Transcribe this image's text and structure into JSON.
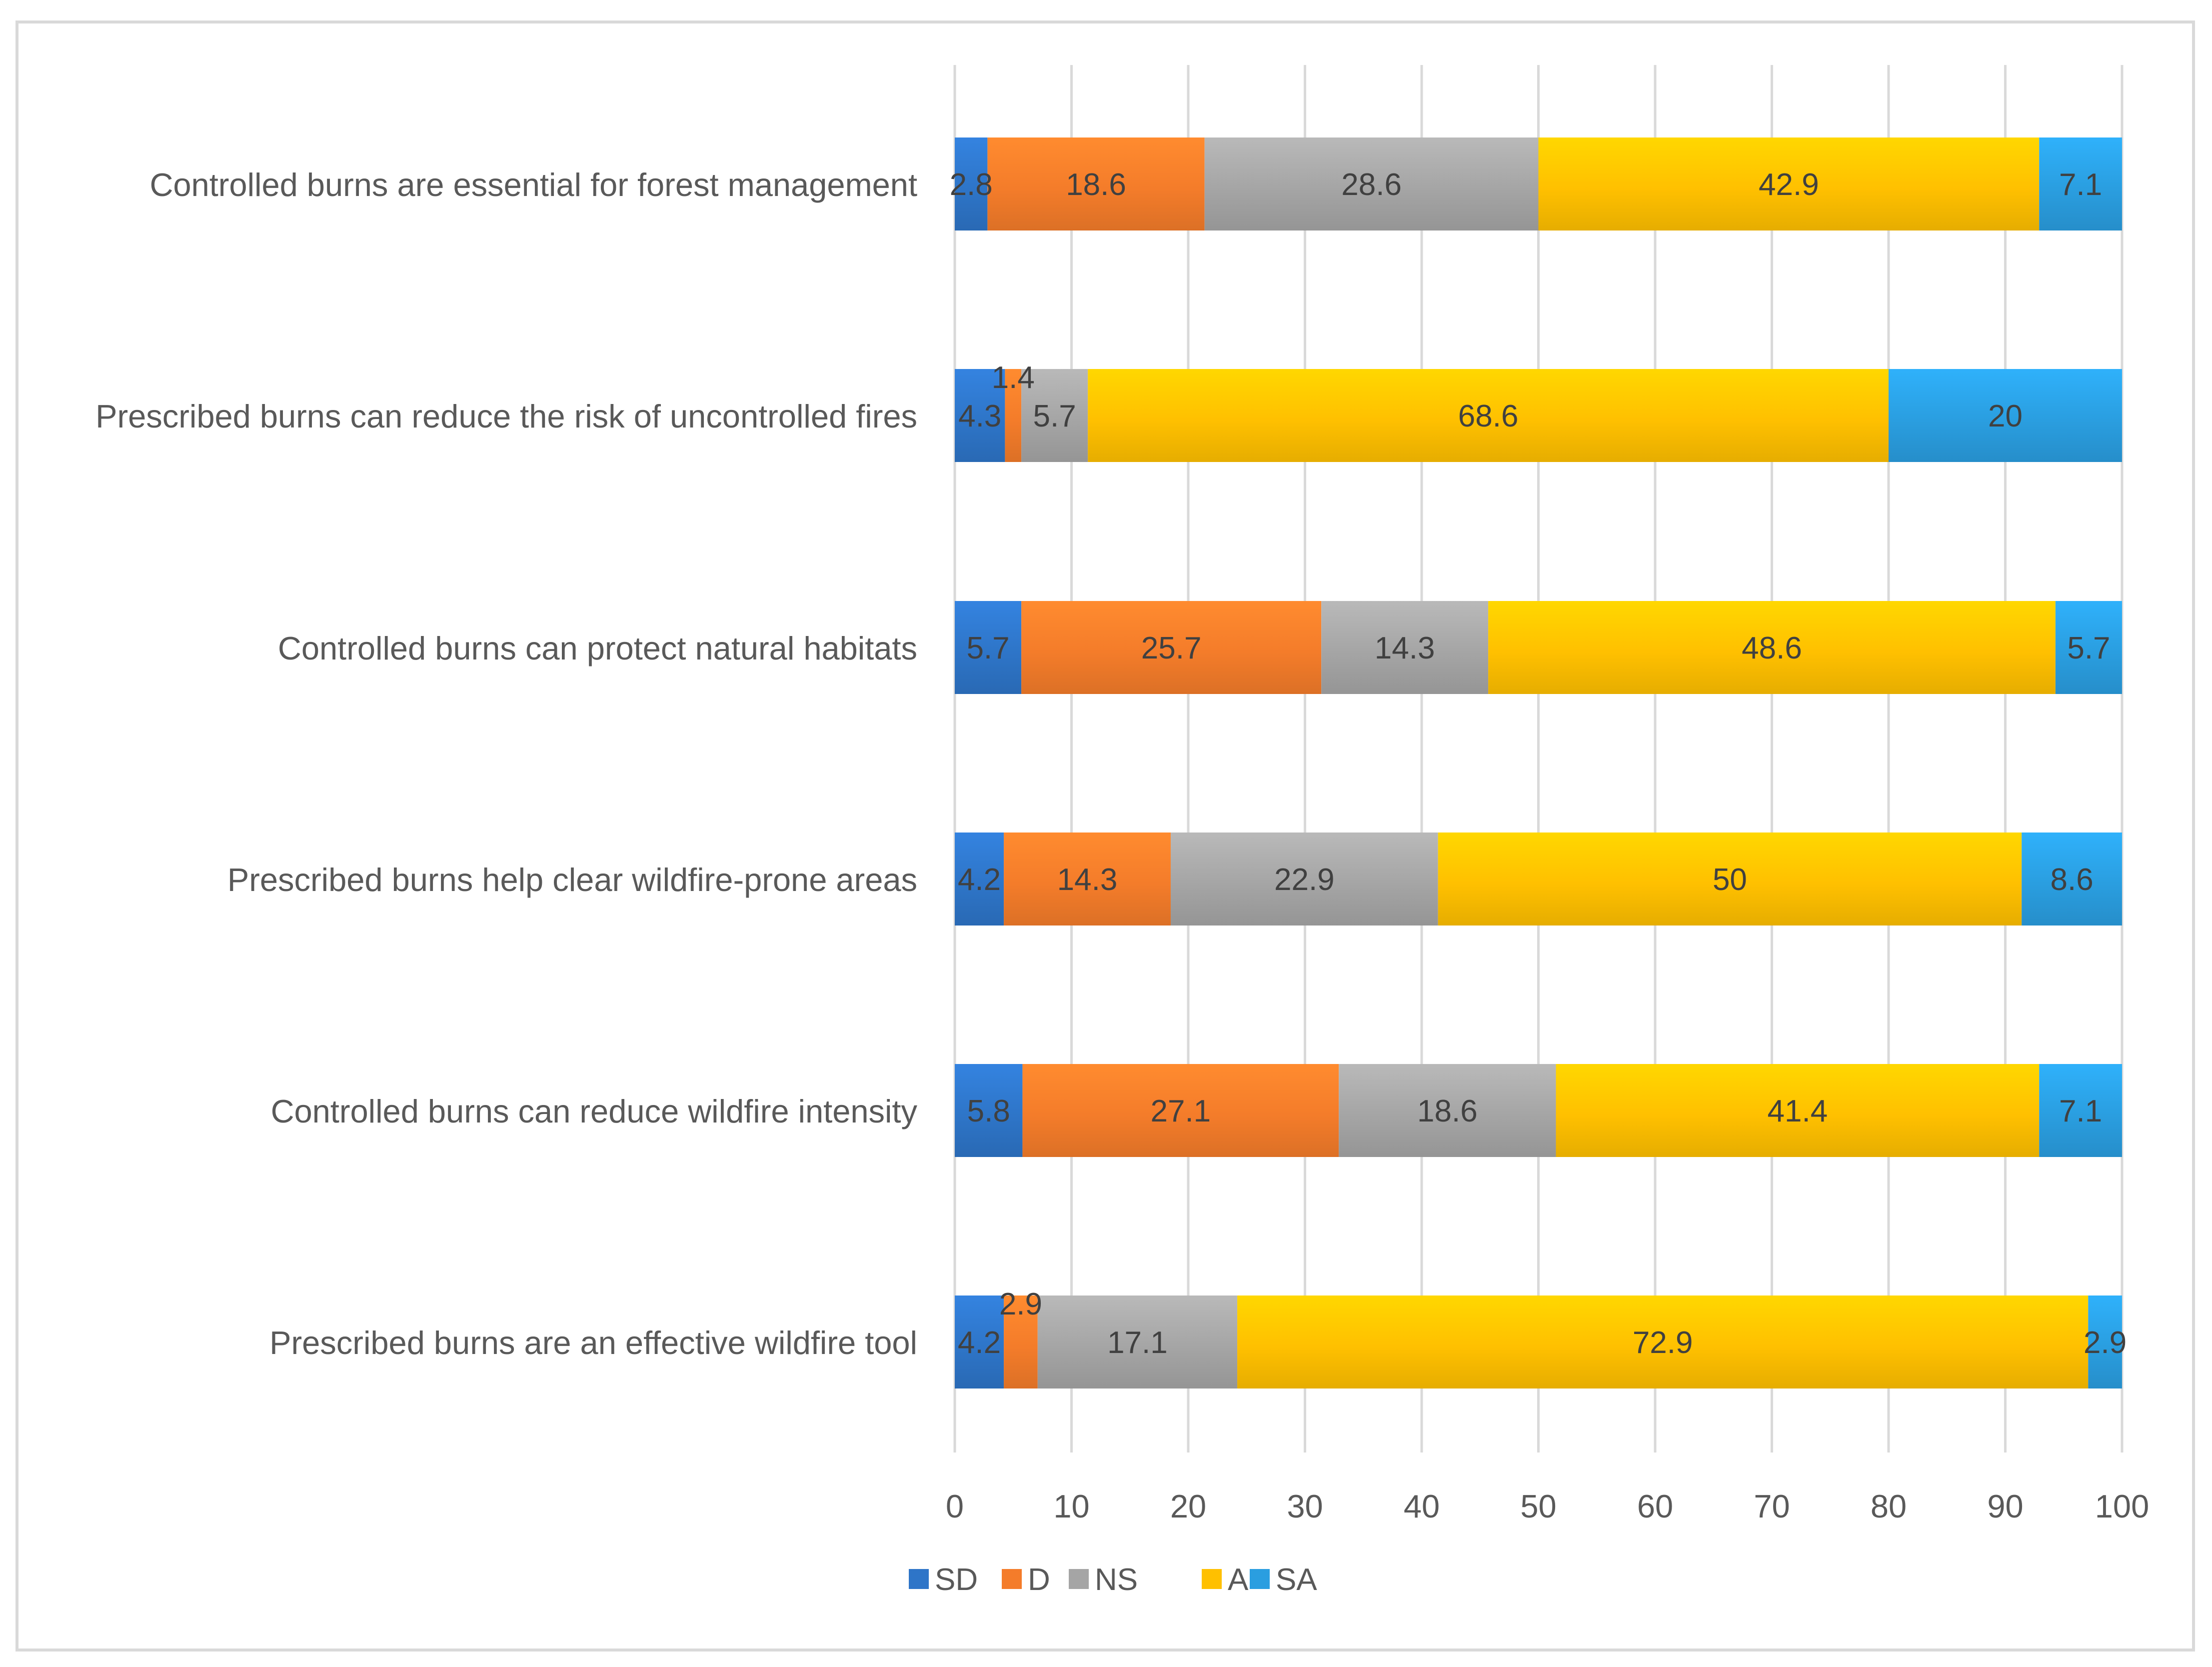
{
  "chart_data": {
    "type": "bar",
    "orientation": "horizontal",
    "stacked": true,
    "title": "",
    "xlabel": "",
    "ylabel": "",
    "xlim": [
      0,
      100
    ],
    "xticks": [
      0,
      10,
      20,
      30,
      40,
      50,
      60,
      70,
      80,
      90,
      100
    ],
    "grid": "vertical gridlines on",
    "legend_position": "bottom",
    "categories": [
      "Controlled burns are essential for forest management",
      "Prescribed burns can reduce the risk of uncontrolled fires",
      "Controlled burns can protect natural habitats",
      "Prescribed burns help clear wildfire-prone areas",
      "Controlled burns can reduce wildfire intensity",
      "Prescribed burns are an effective wildfire tool"
    ],
    "series": [
      {
        "name": "SD",
        "color": "#2e75c8",
        "values": [
          2.8,
          4.3,
          5.7,
          4.2,
          5.8,
          4.2
        ]
      },
      {
        "name": "D",
        "color": "#f47c2a",
        "values": [
          18.6,
          1.4,
          25.7,
          14.3,
          27.1,
          2.9
        ]
      },
      {
        "name": "NS",
        "color": "#a5a5a5",
        "values": [
          28.6,
          5.7,
          14.3,
          22.9,
          18.6,
          17.1
        ]
      },
      {
        "name": "A",
        "color": "#ffc000",
        "values": [
          42.9,
          68.6,
          48.6,
          50,
          41.4,
          72.9
        ]
      },
      {
        "name": "SA",
        "color": "#2a9ee0",
        "values": [
          7.1,
          20,
          5.7,
          8.6,
          7.1,
          2.9
        ]
      }
    ],
    "value_labels": [
      [
        "2.8",
        "18.6",
        "28.6",
        "42.9",
        "7.1"
      ],
      [
        "4.3",
        "1.4",
        "5.7",
        "68.6",
        "20"
      ],
      [
        "5.7",
        "25.7",
        "14.3",
        "48.6",
        "5.7"
      ],
      [
        "4.2",
        "14.3",
        "22.9",
        "50",
        "8.6"
      ],
      [
        "5.8",
        "27.1",
        "18.6",
        "41.4",
        "7.1"
      ],
      [
        "4.2",
        "2.9",
        "17.1",
        "72.9",
        "2.9"
      ]
    ]
  }
}
